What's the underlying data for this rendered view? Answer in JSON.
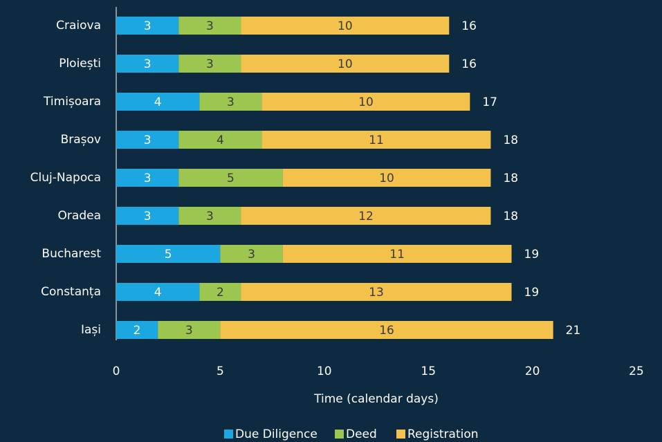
{
  "chart_data": {
    "type": "stacked-bar-horizontal",
    "categories": [
      "Craiova",
      "Ploiești",
      "Timișoara",
      "Brașov",
      "Cluj-Napoca",
      "Oradea",
      "Bucharest",
      "Constanța",
      "Iași"
    ],
    "series": [
      {
        "name": "Due Diligence",
        "color": "#1ca7e1",
        "values": [
          3,
          3,
          4,
          3,
          3,
          3,
          5,
          4,
          2
        ]
      },
      {
        "name": "Deed",
        "color": "#9cc650",
        "values": [
          3,
          3,
          3,
          4,
          5,
          3,
          3,
          2,
          3
        ]
      },
      {
        "name": "Registration",
        "color": "#f2c24d",
        "values": [
          10,
          10,
          10,
          11,
          10,
          12,
          11,
          13,
          16
        ]
      }
    ],
    "totals": [
      16,
      16,
      17,
      18,
      18,
      18,
      19,
      19,
      21
    ],
    "xlim": [
      0,
      25
    ],
    "xticks": [
      0,
      5,
      10,
      15,
      20,
      25
    ],
    "xlabel": "Time (calendar days)",
    "legend": "bottom"
  }
}
